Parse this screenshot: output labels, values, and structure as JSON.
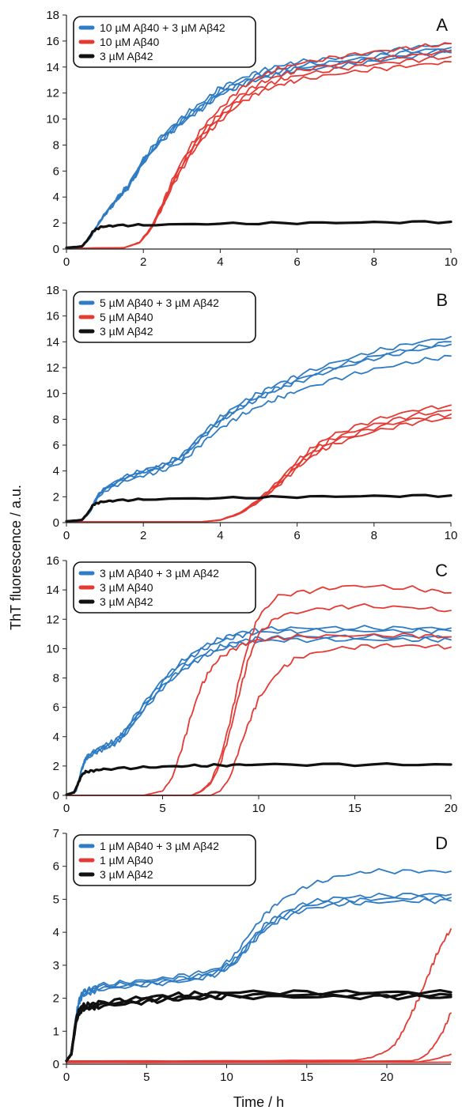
{
  "figure": {
    "ylabel": "ThT fluorescence / a.u.",
    "xlabel": "Time / h"
  },
  "colors": {
    "mix": "#2f7cc4",
    "ab40": "#e53a34",
    "ab42": "#111111"
  },
  "chart_data": [
    {
      "type": "line",
      "panel": "A",
      "xlim": [
        0,
        10
      ],
      "ylim": [
        0,
        18
      ],
      "xticks": [
        0,
        2,
        4,
        6,
        8,
        10
      ],
      "yticks": [
        0,
        2,
        4,
        6,
        8,
        10,
        12,
        14,
        16,
        18
      ],
      "legend_position": "top-left",
      "series": [
        {
          "name": "10 µM Aβ40 + 3 µM Aβ42",
          "color_key": "mix",
          "replicates": 4,
          "x": [
            0,
            0.4,
            0.6,
            0.8,
            1.0,
            1.3,
            1.6,
            2.0,
            2.4,
            2.8,
            3.2,
            3.6,
            4.0,
            4.5,
            5.0,
            5.5,
            6.0,
            7.0,
            8.0,
            9.0,
            10.0
          ],
          "y": [
            0.1,
            0.2,
            0.8,
            1.8,
            2.7,
            3.8,
            4.8,
            6.8,
            8.3,
            9.4,
            10.4,
            11.2,
            12.2,
            12.8,
            13.4,
            13.8,
            14.1,
            14.4,
            14.8,
            15.2,
            15.5
          ],
          "offsets": [
            0.3,
            -0.2,
            0.0,
            -0.4
          ]
        },
        {
          "name": "10 µM Aβ40",
          "color_key": "ab40",
          "replicates": 4,
          "x": [
            0,
            1.5,
            1.9,
            2.2,
            2.5,
            2.8,
            3.2,
            3.6,
            4.0,
            4.5,
            5.0,
            5.5,
            6.0,
            7.0,
            8.0,
            9.0,
            10.0
          ],
          "y": [
            0.05,
            0.1,
            0.5,
            1.6,
            3.4,
            5.4,
            7.5,
            9.2,
            10.4,
            11.8,
            12.7,
            13.3,
            13.7,
            14.2,
            14.6,
            14.9,
            15.2
          ],
          "offsets": [
            0.6,
            0.0,
            -0.4,
            -0.8
          ]
        },
        {
          "name": "3 µM Aβ42",
          "color_key": "ab42",
          "replicates": 1,
          "x": [
            0,
            0.4,
            0.55,
            0.7,
            0.9,
            1.2,
            2.0,
            4.0,
            6.0,
            8.0,
            10.0
          ],
          "y": [
            0.1,
            0.2,
            0.7,
            1.4,
            1.7,
            1.8,
            1.85,
            1.95,
            2.0,
            2.05,
            2.1
          ],
          "offsets": [
            0.0
          ]
        }
      ]
    },
    {
      "type": "line",
      "panel": "B",
      "xlim": [
        0,
        10
      ],
      "ylim": [
        0,
        18
      ],
      "xticks": [
        0,
        2,
        4,
        6,
        8,
        10
      ],
      "yticks": [
        0,
        2,
        4,
        6,
        8,
        10,
        12,
        14,
        16,
        18
      ],
      "legend_position": "top-left",
      "series": [
        {
          "name": "5 µM Aβ40 + 3 µM Aβ42",
          "color_key": "mix",
          "replicates": 4,
          "x": [
            0,
            0.4,
            0.6,
            0.8,
            1.0,
            1.5,
            2.0,
            2.5,
            3.0,
            3.5,
            4.0,
            4.5,
            5.0,
            5.5,
            6.0,
            7.0,
            8.0,
            9.0,
            10.0
          ],
          "y": [
            0.1,
            0.2,
            0.8,
            2.0,
            2.6,
            3.4,
            3.9,
            4.3,
            5.0,
            6.5,
            7.8,
            8.8,
            9.6,
            10.3,
            10.9,
            11.9,
            12.7,
            13.3,
            13.8
          ],
          "offsets": [
            0.6,
            0.2,
            0.0,
            -0.9
          ]
        },
        {
          "name": "5 µM Aβ40",
          "color_key": "ab40",
          "replicates": 4,
          "x": [
            0,
            3.5,
            4.0,
            4.5,
            5.0,
            5.5,
            6.0,
            6.5,
            7.0,
            8.0,
            9.0,
            10.0
          ],
          "y": [
            0.05,
            0.05,
            0.2,
            0.7,
            1.7,
            3.0,
            4.5,
            5.7,
            6.5,
            7.5,
            8.2,
            8.6
          ],
          "offsets": [
            0.5,
            0.1,
            -0.2,
            -0.5
          ]
        },
        {
          "name": "3 µM Aβ42",
          "color_key": "ab42",
          "replicates": 1,
          "x": [
            0,
            0.4,
            0.55,
            0.7,
            0.9,
            1.2,
            2.0,
            4.0,
            6.0,
            8.0,
            10.0
          ],
          "y": [
            0.1,
            0.2,
            0.7,
            1.4,
            1.6,
            1.7,
            1.8,
            1.9,
            2.0,
            2.05,
            2.1
          ],
          "offsets": [
            0.0
          ]
        }
      ]
    },
    {
      "type": "line",
      "panel": "C",
      "xlim": [
        0,
        20
      ],
      "ylim": [
        0,
        16
      ],
      "xticks": [
        0,
        5,
        10,
        15,
        20
      ],
      "yticks": [
        0,
        2,
        4,
        6,
        8,
        10,
        12,
        14,
        16
      ],
      "legend_position": "top-left",
      "series": [
        {
          "name": "3 µM Aβ40 + 3 µM Aβ42",
          "color_key": "mix",
          "replicates": 4,
          "x": [
            0,
            0.5,
            0.8,
            1.0,
            1.5,
            2.0,
            2.5,
            3.0,
            4.0,
            5.0,
            6.0,
            7.0,
            8.0,
            9.0,
            10.0,
            12.0,
            15.0,
            18.0,
            20.0
          ],
          "y": [
            0.05,
            0.3,
            1.8,
            2.5,
            3.0,
            3.3,
            3.6,
            4.2,
            6.0,
            7.6,
            8.8,
            9.7,
            10.3,
            10.7,
            10.9,
            11.0,
            11.0,
            11.0,
            11.0
          ],
          "offsets": [
            0.4,
            0.2,
            -0.2,
            -0.4
          ]
        },
        {
          "name": "3 µM Aβ40",
          "color_key": "ab40",
          "replicates": 1,
          "x": [
            0,
            4.0,
            5.0,
            5.5,
            6.0,
            6.5,
            7.0,
            7.5,
            8.0,
            9.0,
            10.0,
            12.0,
            15.0,
            18.0,
            20.0
          ],
          "y": [
            0.0,
            0.0,
            0.3,
            1.2,
            3.2,
            5.5,
            7.4,
            8.6,
            9.4,
            10.2,
            10.6,
            10.8,
            10.9,
            10.9,
            10.8
          ],
          "offsets": [
            0.0
          ]
        },
        {
          "name": "",
          "color_key": "ab40",
          "replicates": 1,
          "x": [
            0,
            6.5,
            7.0,
            7.5,
            8.0,
            8.5,
            9.0,
            9.5,
            10.0,
            11.0,
            13.0,
            15.0,
            18.0,
            20.0
          ],
          "y": [
            0.0,
            0.0,
            0.3,
            0.9,
            2.5,
            5.0,
            8.0,
            10.5,
            12.2,
            13.6,
            14.0,
            14.3,
            14.1,
            13.8
          ],
          "offsets": [
            0.0
          ]
        },
        {
          "name": "",
          "color_key": "ab40",
          "replicates": 1,
          "x": [
            0,
            6.5,
            7.0,
            7.5,
            8.0,
            8.5,
            9.0,
            9.5,
            10.0,
            11.0,
            13.0,
            15.0,
            18.0,
            20.0
          ],
          "y": [
            0.0,
            0.0,
            0.25,
            0.8,
            2.1,
            4.3,
            7.0,
            9.4,
            11.0,
            12.2,
            12.7,
            12.9,
            12.8,
            12.6
          ],
          "offsets": [
            0.0
          ]
        },
        {
          "name": "",
          "color_key": "ab40",
          "replicates": 1,
          "x": [
            0,
            7.5,
            8.0,
            8.5,
            9.0,
            9.5,
            10.0,
            11.0,
            12.0,
            14.0,
            16.0,
            18.0,
            20.0
          ],
          "y": [
            0.0,
            0.0,
            0.3,
            1.2,
            3.2,
            5.0,
            6.6,
            8.4,
            9.4,
            10.0,
            10.2,
            10.2,
            10.1
          ],
          "offsets": [
            0.0
          ]
        },
        {
          "name": "3 µM Aβ42",
          "color_key": "ab42",
          "replicates": 1,
          "x": [
            0,
            0.4,
            0.6,
            0.8,
            1.0,
            1.5,
            2.0,
            4.0,
            6.0,
            8.0,
            10.0,
            15.0,
            20.0
          ],
          "y": [
            0.05,
            0.2,
            0.8,
            1.4,
            1.6,
            1.7,
            1.8,
            1.9,
            2.0,
            2.05,
            2.1,
            2.1,
            2.1
          ],
          "offsets": [
            0.0
          ]
        }
      ]
    },
    {
      "type": "line",
      "panel": "D",
      "xlim": [
        0,
        24
      ],
      "ylim": [
        0,
        7
      ],
      "xticks": [
        0,
        5,
        10,
        15,
        20
      ],
      "yticks": [
        0,
        1,
        2,
        3,
        4,
        5,
        6,
        7
      ],
      "legend_position": "top-left",
      "series": [
        {
          "name": "1 µM Aβ40 + 3 µM Aβ42",
          "color_key": "mix",
          "replicates": 3,
          "x": [
            0,
            0.3,
            0.6,
            0.8,
            1.0,
            1.5,
            2.0,
            4.0,
            6.0,
            8.0,
            9.5,
            10.5,
            11.5,
            12.5,
            13.5,
            15.0,
            17.0,
            19.0,
            22.0,
            24.0
          ],
          "y": [
            0.1,
            0.3,
            1.4,
            1.9,
            2.1,
            2.2,
            2.3,
            2.4,
            2.5,
            2.6,
            2.8,
            3.1,
            3.7,
            4.2,
            4.5,
            4.8,
            4.95,
            5.0,
            5.05,
            5.05
          ],
          "offsets": [
            0.0,
            0.1,
            -0.1
          ]
        },
        {
          "name": "",
          "color_key": "mix",
          "replicates": 1,
          "x": [
            0,
            0.3,
            0.6,
            0.8,
            1.0,
            1.5,
            2.0,
            4.0,
            6.0,
            8.0,
            9.5,
            10.5,
            11.5,
            12.5,
            13.5,
            15.0,
            17.0,
            19.0,
            22.0,
            24.0
          ],
          "y": [
            0.1,
            0.3,
            1.5,
            2.0,
            2.2,
            2.3,
            2.4,
            2.5,
            2.6,
            2.75,
            2.9,
            3.3,
            4.0,
            4.6,
            5.0,
            5.4,
            5.7,
            5.85,
            5.85,
            5.85
          ],
          "offsets": [
            0.0
          ]
        },
        {
          "name": "1 µM Aβ40",
          "color_key": "ab40",
          "replicates": 1,
          "x": [
            0,
            10.0,
            18.0,
            19.0,
            20.0,
            20.5,
            21.0,
            21.5,
            22.0,
            22.5,
            23.0,
            23.5,
            24.0
          ],
          "y": [
            0.1,
            0.1,
            0.12,
            0.2,
            0.4,
            0.6,
            1.0,
            1.5,
            2.0,
            2.6,
            3.2,
            3.7,
            4.1
          ],
          "offsets": [
            0.0
          ]
        },
        {
          "name": "",
          "color_key": "ab40",
          "replicates": 1,
          "x": [
            0,
            10.0,
            21.5,
            22.0,
            22.5,
            23.0,
            23.5,
            24.0
          ],
          "y": [
            0.08,
            0.08,
            0.1,
            0.15,
            0.3,
            0.6,
            1.0,
            1.55
          ],
          "offsets": [
            0.0
          ]
        },
        {
          "name": "",
          "color_key": "ab40",
          "replicates": 1,
          "x": [
            0,
            10.0,
            22.0,
            23.0,
            24.0
          ],
          "y": [
            0.06,
            0.06,
            0.07,
            0.15,
            0.3
          ],
          "offsets": [
            0.0
          ]
        },
        {
          "name": "",
          "color_key": "ab40",
          "replicates": 1,
          "x": [
            0,
            10.0,
            24.0
          ],
          "y": [
            0.05,
            0.05,
            0.06
          ],
          "offsets": [
            0.0
          ]
        },
        {
          "name": "3 µM Aβ42",
          "color_key": "ab42",
          "replicates": 3,
          "x": [
            0,
            0.3,
            0.6,
            0.8,
            1.0,
            1.5,
            2.0,
            4.0,
            6.0,
            8.0,
            10.0,
            15.0,
            20.0,
            24.0
          ],
          "y": [
            0.1,
            0.3,
            1.3,
            1.6,
            1.7,
            1.75,
            1.8,
            1.9,
            2.0,
            2.05,
            2.1,
            2.1,
            2.1,
            2.1
          ],
          "offsets": [
            0.0,
            0.08,
            -0.06
          ]
        }
      ]
    }
  ]
}
